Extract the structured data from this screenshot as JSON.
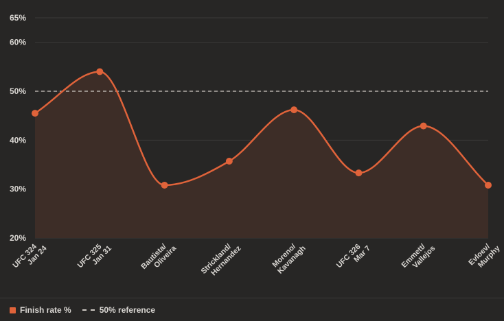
{
  "chart_data": {
    "type": "area",
    "categories": [
      [
        "UFC 324",
        "Jan 24"
      ],
      [
        "UFC 325",
        "Jan 31"
      ],
      [
        "Bautista/",
        "Oliveira"
      ],
      [
        "Strickland/",
        "Hernandez"
      ],
      [
        "Moreno/",
        "Kavanagh"
      ],
      [
        "UFC 326",
        "Mar 7"
      ],
      [
        "Emmett/",
        "Vallejos"
      ],
      [
        "Evloev/",
        "Murphy"
      ]
    ],
    "series": [
      {
        "name": "Finish rate %",
        "values": [
          45.5,
          54,
          30.8,
          35.7,
          46.2,
          33.3,
          42.9,
          30.8
        ]
      }
    ],
    "reference": {
      "name": "50% reference",
      "value": 50
    },
    "ylim": [
      20,
      65
    ],
    "yticks": [
      20,
      30,
      40,
      50,
      60,
      65
    ],
    "ytick_suffix": "%",
    "grid": true,
    "legend_position": "bottom-left",
    "colors": {
      "line": "#e0633a",
      "fill": "#3d2d27",
      "reference": "#cfcac4",
      "grid": "#3b3a39"
    }
  },
  "legend": {
    "series_label": "Finish rate %",
    "reference_label": "50% reference"
  }
}
